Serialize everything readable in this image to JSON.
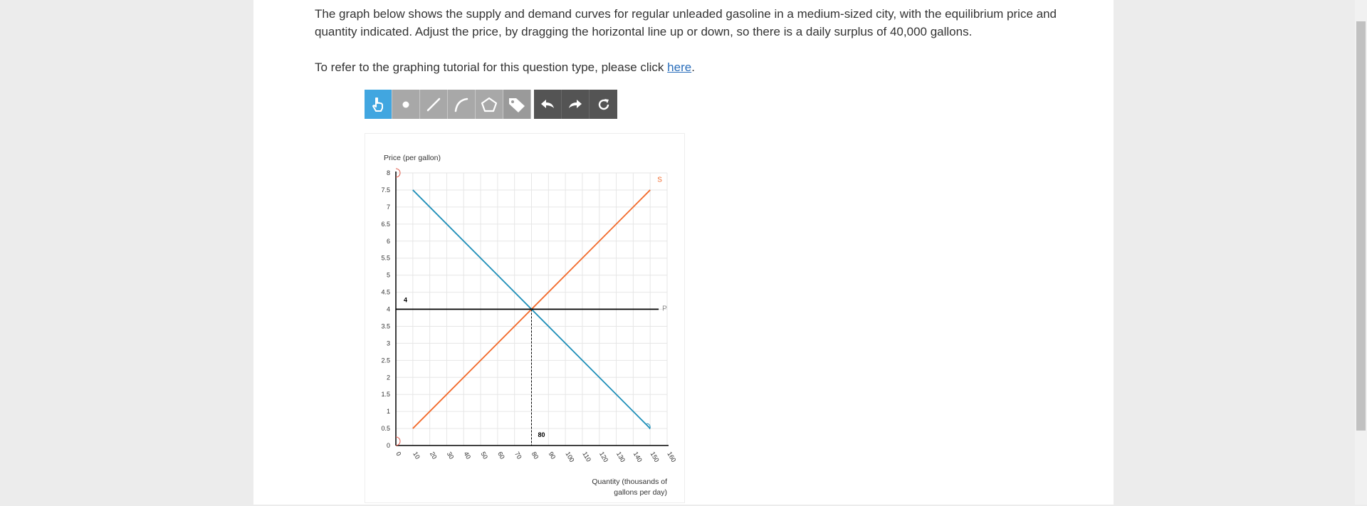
{
  "question": {
    "text": "The graph below shows the supply and demand curves for regular unleaded gasoline in a medium-sized city, with the equilibrium price and quantity indicated. Adjust the price, by dragging the horizontal line up or down, so there is a daily surplus of 40,000 gallons.",
    "tutorial_prefix": "To refer to the graphing tutorial for this question type, please click ",
    "tutorial_link": "here",
    "tutorial_suffix": "."
  },
  "toolbar": {
    "tools": [
      {
        "name": "select-tool",
        "icon": "hand-pointer-icon",
        "active": true
      },
      {
        "name": "point-tool",
        "icon": "point-icon",
        "active": false
      },
      {
        "name": "line-tool",
        "icon": "line-icon",
        "active": false
      },
      {
        "name": "curve-tool",
        "icon": "curve-icon",
        "active": false
      },
      {
        "name": "polygon-tool",
        "icon": "pentagon-icon",
        "active": false
      },
      {
        "name": "label-tool",
        "icon": "tag-icon",
        "active": false
      },
      {
        "name": "undo",
        "icon": "undo-icon",
        "active": false
      },
      {
        "name": "redo",
        "icon": "redo-icon",
        "active": false
      },
      {
        "name": "reset",
        "icon": "refresh-icon",
        "active": false
      }
    ]
  },
  "chart_data": {
    "type": "line",
    "ylabel": "Price (per gallon)",
    "xlabel_line1": "Quantity (thousands of",
    "xlabel_line2": "gallons per day)",
    "xlim": [
      0,
      160
    ],
    "ylim": [
      0,
      8
    ],
    "x_ticks": [
      "0",
      "10",
      "20",
      "30",
      "40",
      "50",
      "60",
      "70",
      "80",
      "90",
      "100",
      "110",
      "120",
      "130",
      "140",
      "150",
      "160"
    ],
    "y_ticks": [
      "0",
      "0.5",
      "1",
      "1.5",
      "2",
      "2.5",
      "3",
      "3.5",
      "4",
      "4.5",
      "5",
      "5.5",
      "6",
      "6.5",
      "7",
      "7.5",
      "8"
    ],
    "grid": true,
    "colors": {
      "demand": "#1f8fb8",
      "supply": "#f26a2b",
      "price": "#000000",
      "grid": "#e6e6e6",
      "axis": "#000000"
    },
    "series": [
      {
        "name": "S",
        "points": [
          [
            10,
            0.5
          ],
          [
            150,
            7.5
          ]
        ]
      },
      {
        "name": "D",
        "points": [
          [
            10,
            7.5
          ],
          [
            150,
            0.5
          ]
        ]
      },
      {
        "name": "P",
        "points": [
          [
            0,
            4
          ],
          [
            155,
            4
          ]
        ]
      }
    ],
    "equilibrium": {
      "x": 80,
      "y": 4,
      "x_label": "80",
      "y_label": "4"
    }
  }
}
